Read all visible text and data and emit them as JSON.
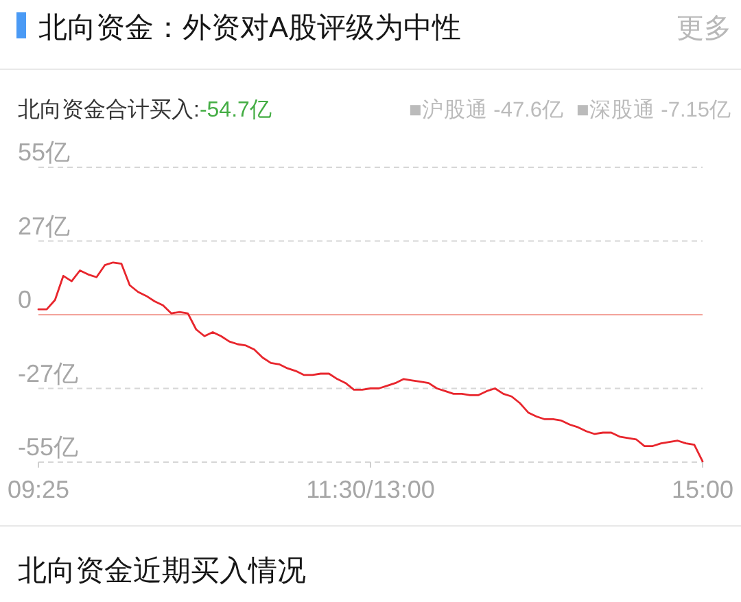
{
  "chart_data": {
    "type": "line",
    "title": "北向资金：外资对A股评级为中性",
    "subtitle": "北向资金合计买入:",
    "annotations": [
      "-54.7亿",
      "■沪股通 -47.6亿",
      "■深股通 -7.15亿",
      "更多",
      "北向资金近期买入情况"
    ],
    "categories": [
      "09:25",
      null,
      null,
      null,
      null,
      null,
      null,
      null,
      null,
      null,
      null,
      null,
      null,
      null,
      null,
      null,
      null,
      null,
      null,
      null,
      null,
      null,
      null,
      null,
      null,
      null,
      null,
      null,
      null,
      null,
      null,
      null,
      null,
      null,
      null,
      null,
      null,
      null,
      null,
      null,
      "11:30/13:00",
      null,
      null,
      null,
      null,
      null,
      null,
      null,
      null,
      null,
      null,
      null,
      null,
      null,
      null,
      null,
      null,
      null,
      null,
      null,
      null,
      null,
      null,
      null,
      null,
      null,
      null,
      null,
      null,
      null,
      null,
      null,
      null,
      null,
      null,
      null,
      null,
      null,
      null,
      null,
      "15:00"
    ],
    "series": [
      {
        "color": "#e8262d",
        "values": [
          2,
          2,
          5.5,
          14.5,
          12.5,
          16.5,
          15,
          14,
          18.5,
          19.5,
          19,
          11,
          8.5,
          7,
          5,
          3.5,
          0.5,
          1,
          0.5,
          -5.5,
          -8,
          -6.5,
          -8,
          -10,
          -11,
          -11.5,
          -13,
          -16,
          -18,
          -18.5,
          -20,
          -21,
          -22.5,
          -22.5,
          -22,
          -22,
          -24,
          -25.5,
          -28,
          -28,
          -27.5,
          -27.5,
          -26.5,
          -25.5,
          -24,
          -24.5,
          -25,
          -25.5,
          -27.5,
          -28.5,
          -29.5,
          -29.5,
          -30,
          -30,
          -28.5,
          -27.5,
          -29.5,
          -30.5,
          -33,
          -36.5,
          -38,
          -39,
          -39,
          -39.5,
          -41,
          -42,
          -43.5,
          -44.5,
          -44,
          -44,
          -45.5,
          -46,
          -46.5,
          -49,
          -49,
          -48,
          -47.5,
          -47,
          -48,
          -48.5,
          -54.7
        ]
      }
    ],
    "ylim": [
      -55,
      55
    ],
    "yticks": [
      {
        "value": 55,
        "label": "55亿"
      },
      {
        "value": 27.5,
        "label": "27亿"
      },
      0,
      {
        "value": -27.5,
        "label": "-27亿"
      },
      {
        "value": -55,
        "label": "-55亿"
      }
    ],
    "grid": "y",
    "ref_lines": [
      {
        "axis": "y",
        "value": 0,
        "color": "#f3a39b",
        "line_style": "solid"
      }
    ]
  }
}
